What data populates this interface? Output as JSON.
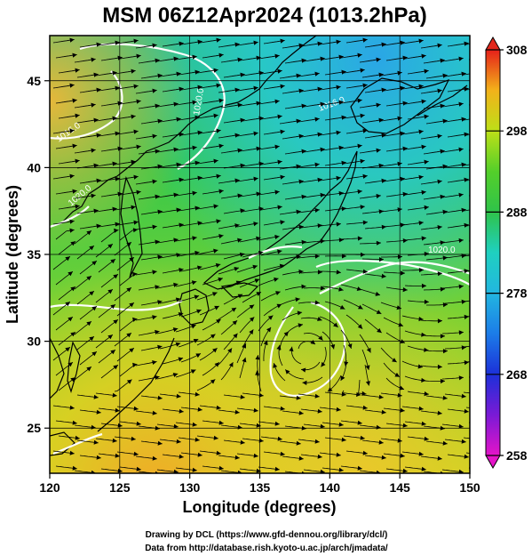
{
  "chart_data": {
    "type": "heatmap",
    "title": "MSM 06Z12Apr2024 (1013.2hPa)",
    "xlabel": "Longitude (degrees)",
    "ylabel": "Latitude  (degrees)",
    "xlim": [
      120,
      150
    ],
    "ylim": [
      22.4,
      47.6
    ],
    "x_ticks": [
      120,
      125,
      130,
      135,
      140,
      145,
      150
    ],
    "x_tick_labels": [
      "120",
      "125",
      "130",
      "135",
      "140",
      "145",
      "150"
    ],
    "y_ticks": [
      25,
      30,
      35,
      40,
      45
    ],
    "y_tick_labels": [
      "25",
      "30",
      "35",
      "40",
      "45"
    ],
    "grid": true,
    "colorbar": {
      "range": [
        258,
        308
      ],
      "ticks": [
        258,
        268,
        278,
        288,
        298,
        308
      ],
      "tick_labels": [
        "258",
        "268",
        "278",
        "288",
        "298",
        "308"
      ]
    },
    "contour_labels": [
      "1020.0",
      "1016.0",
      "1016.0",
      "1020.0",
      "1020.0"
    ],
    "credits": [
      "Drawing by DCL (https://www.gfd-dennou.org/library/dcl/)",
      "Data from http://database.rish.kyoto-u.ac.jp/arch/jmadata/"
    ],
    "colors": {
      "warm": "#f5b52a",
      "mid": "#8fd72a",
      "green": "#2fc545",
      "cool": "#1fd6c0",
      "cold": "#22a8e8",
      "contour": "#ffffff",
      "coast": "#000000"
    }
  }
}
